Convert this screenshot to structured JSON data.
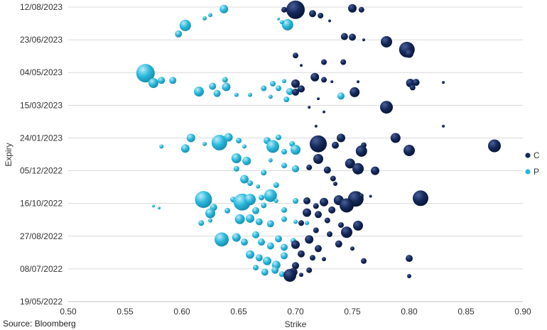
{
  "chart_data": {
    "type": "scatter",
    "subtype": "bubble",
    "xlabel": "Strike",
    "ylabel": "Expiry",
    "xlim": [
      0.5,
      0.9
    ],
    "x_ticks": [
      "0.50",
      "0.55",
      "0.60",
      "0.65",
      "0.70",
      "0.75",
      "0.80",
      "0.85",
      "0.90"
    ],
    "y_ticks": [
      "19/05/2022",
      "08/07/2022",
      "27/08/2022",
      "16/10/2022",
      "05/12/2022",
      "24/01/2023",
      "15/03/2023",
      "04/05/2023",
      "23/06/2023",
      "12/08/2023"
    ],
    "ylim": [
      "19/05/2022",
      "12/08/2023"
    ],
    "grid": "horizontal",
    "legend_position": "right",
    "source": "Source: Bloomberg",
    "series": [
      {
        "name": "C",
        "color": "#14285a",
        "points": [
          {
            "x": 0.7,
            "y": "2023-08-08",
            "s": 13
          },
          {
            "x": 0.69,
            "y": "2023-08-08",
            "s": 4
          },
          {
            "x": 0.715,
            "y": "2023-08-02",
            "s": 5
          },
          {
            "x": 0.722,
            "y": "2023-07-30",
            "s": 4
          },
          {
            "x": 0.75,
            "y": "2023-08-10",
            "s": 6
          },
          {
            "x": 0.758,
            "y": "2023-08-08",
            "s": 4
          },
          {
            "x": 0.73,
            "y": "2023-07-22",
            "s": 2
          },
          {
            "x": 0.743,
            "y": "2023-06-28",
            "s": 5
          },
          {
            "x": 0.75,
            "y": "2023-06-27",
            "s": 5
          },
          {
            "x": 0.76,
            "y": "2023-06-23",
            "s": 2
          },
          {
            "x": 0.78,
            "y": "2023-06-20",
            "s": 8
          },
          {
            "x": 0.798,
            "y": "2023-06-08",
            "s": 11
          },
          {
            "x": 0.8,
            "y": "2023-06-02",
            "s": 6
          },
          {
            "x": 0.7,
            "y": "2023-05-30",
            "s": 4
          },
          {
            "x": 0.705,
            "y": "2023-05-15",
            "s": 2
          },
          {
            "x": 0.725,
            "y": "2023-05-20",
            "s": 4
          },
          {
            "x": 0.742,
            "y": "2023-05-20",
            "s": 4
          },
          {
            "x": 0.717,
            "y": "2023-04-27",
            "s": 6
          },
          {
            "x": 0.725,
            "y": "2023-04-23",
            "s": 4
          },
          {
            "x": 0.732,
            "y": "2023-04-20",
            "s": 2
          },
          {
            "x": 0.7,
            "y": "2023-04-17",
            "s": 6
          },
          {
            "x": 0.705,
            "y": "2023-04-09",
            "s": 5
          },
          {
            "x": 0.7,
            "y": "2023-04-04",
            "s": 5
          },
          {
            "x": 0.755,
            "y": "2023-04-20",
            "s": 2
          },
          {
            "x": 0.801,
            "y": "2023-04-18",
            "s": 6
          },
          {
            "x": 0.806,
            "y": "2023-04-19",
            "s": 5
          },
          {
            "x": 0.803,
            "y": "2023-04-11",
            "s": 4
          },
          {
            "x": 0.83,
            "y": "2023-04-19",
            "s": 2
          },
          {
            "x": 0.752,
            "y": "2023-04-04",
            "s": 7
          },
          {
            "x": 0.78,
            "y": "2023-03-12",
            "s": 9
          },
          {
            "x": 0.72,
            "y": "2023-03-25",
            "s": 2
          },
          {
            "x": 0.712,
            "y": "2023-03-12",
            "s": 2
          },
          {
            "x": 0.725,
            "y": "2023-03-05",
            "s": 2
          },
          {
            "x": 0.83,
            "y": "2023-02-11",
            "s": 2
          },
          {
            "x": 0.718,
            "y": "2023-02-11",
            "s": 2
          },
          {
            "x": 0.72,
            "y": "2023-01-15",
            "s": 12
          },
          {
            "x": 0.74,
            "y": "2023-01-24",
            "s": 6
          },
          {
            "x": 0.735,
            "y": "2023-01-13",
            "s": 5
          },
          {
            "x": 0.76,
            "y": "2023-01-13",
            "s": 4
          },
          {
            "x": 0.788,
            "y": "2023-01-24",
            "s": 7
          },
          {
            "x": 0.8,
            "y": "2023-01-05",
            "s": 8
          },
          {
            "x": 0.875,
            "y": "2023-01-12",
            "s": 9
          },
          {
            "x": 0.758,
            "y": "2023-01-04",
            "s": 8
          },
          {
            "x": 0.72,
            "y": "2022-12-23",
            "s": 7
          },
          {
            "x": 0.748,
            "y": "2022-12-16",
            "s": 7
          },
          {
            "x": 0.755,
            "y": "2022-12-08",
            "s": 8
          },
          {
            "x": 0.77,
            "y": "2022-12-05",
            "s": 6
          },
          {
            "x": 0.728,
            "y": "2022-12-06",
            "s": 5
          },
          {
            "x": 0.712,
            "y": "2022-12-10",
            "s": 4
          },
          {
            "x": 0.733,
            "y": "2022-11-23",
            "s": 4
          },
          {
            "x": 0.735,
            "y": "2022-11-15",
            "s": 3
          },
          {
            "x": 0.753,
            "y": "2022-10-23",
            "s": 11
          },
          {
            "x": 0.81,
            "y": "2022-10-24",
            "s": 11
          },
          {
            "x": 0.738,
            "y": "2022-10-21",
            "s": 7
          },
          {
            "x": 0.725,
            "y": "2022-10-18",
            "s": 6
          },
          {
            "x": 0.745,
            "y": "2022-10-13",
            "s": 10
          },
          {
            "x": 0.71,
            "y": "2022-10-20",
            "s": 5
          },
          {
            "x": 0.718,
            "y": "2022-10-12",
            "s": 4
          },
          {
            "x": 0.732,
            "y": "2022-10-06",
            "s": 5
          },
          {
            "x": 0.758,
            "y": "2022-10-28",
            "s": 3
          },
          {
            "x": 0.766,
            "y": "2022-10-27",
            "s": 2
          },
          {
            "x": 0.71,
            "y": "2022-10-02",
            "s": 6
          },
          {
            "x": 0.72,
            "y": "2022-09-29",
            "s": 5
          },
          {
            "x": 0.728,
            "y": "2022-09-20",
            "s": 4
          },
          {
            "x": 0.705,
            "y": "2022-09-16",
            "s": 4
          },
          {
            "x": 0.755,
            "y": "2022-09-12",
            "s": 7
          },
          {
            "x": 0.74,
            "y": "2022-09-13",
            "s": 4
          },
          {
            "x": 0.718,
            "y": "2022-09-05",
            "s": 4
          },
          {
            "x": 0.745,
            "y": "2022-09-02",
            "s": 8
          },
          {
            "x": 0.73,
            "y": "2022-08-30",
            "s": 4
          },
          {
            "x": 0.712,
            "y": "2022-08-22",
            "s": 6
          },
          {
            "x": 0.7,
            "y": "2022-08-14",
            "s": 6
          },
          {
            "x": 0.72,
            "y": "2022-08-08",
            "s": 5
          },
          {
            "x": 0.738,
            "y": "2022-08-15",
            "s": 5
          },
          {
            "x": 0.75,
            "y": "2022-08-08",
            "s": 3
          },
          {
            "x": 0.705,
            "y": "2022-07-31",
            "s": 5
          },
          {
            "x": 0.715,
            "y": "2022-07-25",
            "s": 4
          },
          {
            "x": 0.725,
            "y": "2022-07-23",
            "s": 3
          },
          {
            "x": 0.76,
            "y": "2022-07-20",
            "s": 4
          },
          {
            "x": 0.7,
            "y": "2022-07-13",
            "s": 5
          },
          {
            "x": 0.712,
            "y": "2022-07-06",
            "s": 4
          },
          {
            "x": 0.698,
            "y": "2022-07-03",
            "s": 6
          },
          {
            "x": 0.705,
            "y": "2022-06-29",
            "s": 3
          },
          {
            "x": 0.8,
            "y": "2022-07-24",
            "s": 5
          },
          {
            "x": 0.8,
            "y": "2022-06-27",
            "s": 3
          },
          {
            "x": 0.695,
            "y": "2022-06-28",
            "s": 9
          }
        ]
      },
      {
        "name": "P",
        "color": "#29b8dc",
        "points": [
          {
            "x": 0.637,
            "y": "2023-08-09",
            "s": 6
          },
          {
            "x": 0.625,
            "y": "2023-07-31",
            "s": 3
          },
          {
            "x": 0.62,
            "y": "2023-07-26",
            "s": 3
          },
          {
            "x": 0.603,
            "y": "2023-07-15",
            "s": 8
          },
          {
            "x": 0.597,
            "y": "2023-07-02",
            "s": 5
          },
          {
            "x": 0.693,
            "y": "2023-07-16",
            "s": 8
          },
          {
            "x": 0.688,
            "y": "2023-07-20",
            "s": 3
          },
          {
            "x": 0.685,
            "y": "2023-07-25",
            "s": 2
          },
          {
            "x": 0.568,
            "y": "2023-05-03",
            "s": 13
          },
          {
            "x": 0.575,
            "y": "2023-04-18",
            "s": 7
          },
          {
            "x": 0.582,
            "y": "2023-04-22",
            "s": 5
          },
          {
            "x": 0.592,
            "y": "2023-04-22",
            "s": 5
          },
          {
            "x": 0.615,
            "y": "2023-04-05",
            "s": 7
          },
          {
            "x": 0.627,
            "y": "2023-04-13",
            "s": 5
          },
          {
            "x": 0.631,
            "y": "2023-04-02",
            "s": 5
          },
          {
            "x": 0.639,
            "y": "2023-04-12",
            "s": 6
          },
          {
            "x": 0.638,
            "y": "2023-04-23",
            "s": 4
          },
          {
            "x": 0.648,
            "y": "2023-03-31",
            "s": 3
          },
          {
            "x": 0.66,
            "y": "2023-03-31",
            "s": 3
          },
          {
            "x": 0.672,
            "y": "2023-04-10",
            "s": 4
          },
          {
            "x": 0.68,
            "y": "2023-04-17",
            "s": 4
          },
          {
            "x": 0.685,
            "y": "2023-04-10",
            "s": 4
          },
          {
            "x": 0.695,
            "y": "2023-04-05",
            "s": 5
          },
          {
            "x": 0.69,
            "y": "2023-04-21",
            "s": 3
          },
          {
            "x": 0.678,
            "y": "2023-03-28",
            "s": 3
          },
          {
            "x": 0.692,
            "y": "2023-03-24",
            "s": 4
          },
          {
            "x": 0.74,
            "y": "2023-03-29",
            "s": 5
          },
          {
            "x": 0.582,
            "y": "2023-01-11",
            "s": 3
          },
          {
            "x": 0.608,
            "y": "2023-01-24",
            "s": 6
          },
          {
            "x": 0.603,
            "y": "2023-01-08",
            "s": 6
          },
          {
            "x": 0.62,
            "y": "2023-01-15",
            "s": 3
          },
          {
            "x": 0.633,
            "y": "2023-01-17",
            "s": 11
          },
          {
            "x": 0.641,
            "y": "2023-01-25",
            "s": 6
          },
          {
            "x": 0.65,
            "y": "2023-01-20",
            "s": 4
          },
          {
            "x": 0.655,
            "y": "2023-01-11",
            "s": 3
          },
          {
            "x": 0.675,
            "y": "2023-01-20",
            "s": 5
          },
          {
            "x": 0.68,
            "y": "2023-01-11",
            "s": 9
          },
          {
            "x": 0.685,
            "y": "2023-01-25",
            "s": 4
          },
          {
            "x": 0.697,
            "y": "2023-01-15",
            "s": 4
          },
          {
            "x": 0.7,
            "y": "2023-01-06",
            "s": 7
          },
          {
            "x": 0.69,
            "y": "2023-01-03",
            "s": 4
          },
          {
            "x": 0.648,
            "y": "2022-12-24",
            "s": 7
          },
          {
            "x": 0.657,
            "y": "2022-12-20",
            "s": 6
          },
          {
            "x": 0.648,
            "y": "2022-12-08",
            "s": 4
          },
          {
            "x": 0.678,
            "y": "2022-12-21",
            "s": 3
          },
          {
            "x": 0.69,
            "y": "2022-12-13",
            "s": 4
          },
          {
            "x": 0.7,
            "y": "2022-12-08",
            "s": 5
          },
          {
            "x": 0.672,
            "y": "2022-12-02",
            "s": 4
          },
          {
            "x": 0.655,
            "y": "2022-11-22",
            "s": 6
          },
          {
            "x": 0.66,
            "y": "2022-11-16",
            "s": 4
          },
          {
            "x": 0.667,
            "y": "2022-11-11",
            "s": 3
          },
          {
            "x": 0.683,
            "y": "2022-11-13",
            "s": 4
          },
          {
            "x": 0.619,
            "y": "2022-10-22",
            "s": 12
          },
          {
            "x": 0.628,
            "y": "2022-10-10",
            "s": 5
          },
          {
            "x": 0.625,
            "y": "2022-10-01",
            "s": 7
          },
          {
            "x": 0.64,
            "y": "2022-10-05",
            "s": 4
          },
          {
            "x": 0.645,
            "y": "2022-10-22",
            "s": 4
          },
          {
            "x": 0.653,
            "y": "2022-10-18",
            "s": 12
          },
          {
            "x": 0.66,
            "y": "2022-10-22",
            "s": 8
          },
          {
            "x": 0.67,
            "y": "2022-10-25",
            "s": 4
          },
          {
            "x": 0.678,
            "y": "2022-10-28",
            "s": 9
          },
          {
            "x": 0.665,
            "y": "2022-10-05",
            "s": 5
          },
          {
            "x": 0.672,
            "y": "2022-10-13",
            "s": 4
          },
          {
            "x": 0.683,
            "y": "2022-10-20",
            "s": 3
          },
          {
            "x": 0.69,
            "y": "2022-10-06",
            "s": 4
          },
          {
            "x": 0.7,
            "y": "2022-10-20",
            "s": 4
          },
          {
            "x": 0.617,
            "y": "2022-09-16",
            "s": 4
          },
          {
            "x": 0.625,
            "y": "2022-09-20",
            "s": 3
          },
          {
            "x": 0.651,
            "y": "2022-09-22",
            "s": 7
          },
          {
            "x": 0.66,
            "y": "2022-09-23",
            "s": 6
          },
          {
            "x": 0.668,
            "y": "2022-09-18",
            "s": 5
          },
          {
            "x": 0.678,
            "y": "2022-09-15",
            "s": 5
          },
          {
            "x": 0.69,
            "y": "2022-09-22",
            "s": 4
          },
          {
            "x": 0.7,
            "y": "2022-09-18",
            "s": 3
          },
          {
            "x": 0.71,
            "y": "2022-09-16",
            "s": 3
          },
          {
            "x": 0.575,
            "y": "2022-10-12",
            "s": 2
          },
          {
            "x": 0.58,
            "y": "2022-10-09",
            "s": 2
          },
          {
            "x": 0.635,
            "y": "2022-08-22",
            "s": 10
          },
          {
            "x": 0.648,
            "y": "2022-08-25",
            "s": 6
          },
          {
            "x": 0.655,
            "y": "2022-08-18",
            "s": 5
          },
          {
            "x": 0.665,
            "y": "2022-08-29",
            "s": 5
          },
          {
            "x": 0.67,
            "y": "2022-08-18",
            "s": 5
          },
          {
            "x": 0.678,
            "y": "2022-08-12",
            "s": 5
          },
          {
            "x": 0.685,
            "y": "2022-08-23",
            "s": 5
          },
          {
            "x": 0.69,
            "y": "2022-08-10",
            "s": 5
          },
          {
            "x": 0.698,
            "y": "2022-08-20",
            "s": 4
          },
          {
            "x": 0.66,
            "y": "2022-07-30",
            "s": 6
          },
          {
            "x": 0.668,
            "y": "2022-07-25",
            "s": 5
          },
          {
            "x": 0.675,
            "y": "2022-07-20",
            "s": 6
          },
          {
            "x": 0.683,
            "y": "2022-07-14",
            "s": 6
          },
          {
            "x": 0.69,
            "y": "2022-07-28",
            "s": 5
          },
          {
            "x": 0.665,
            "y": "2022-07-10",
            "s": 4
          },
          {
            "x": 0.673,
            "y": "2022-07-03",
            "s": 5
          },
          {
            "x": 0.682,
            "y": "2022-07-06",
            "s": 5
          },
          {
            "x": 0.688,
            "y": "2022-06-30",
            "s": 4
          }
        ]
      }
    ]
  }
}
